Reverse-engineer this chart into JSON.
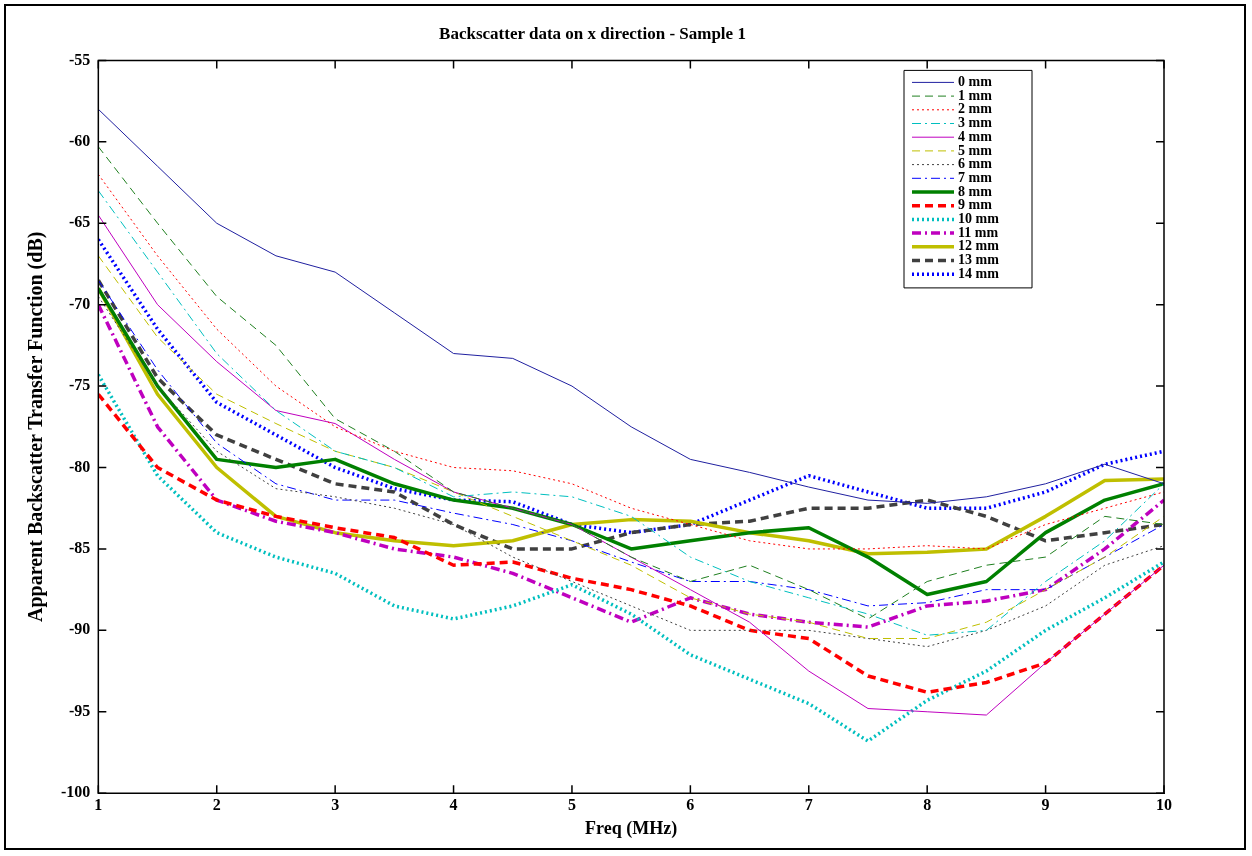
{
  "chart_data": {
    "type": "line",
    "title": "Backscatter data on x direction - Sample 1",
    "xlabel": "Freq (MHz)",
    "ylabel": "Apparent Backscatter Transfer Function (dB)",
    "x": [
      1,
      1.5,
      2,
      2.5,
      3,
      3.5,
      4,
      4.5,
      5,
      5.5,
      6,
      6.5,
      7,
      7.5,
      8,
      8.5,
      9,
      9.5,
      10
    ],
    "xlim": [
      1,
      10
    ],
    "xticks": [
      1,
      2,
      3,
      4,
      5,
      6,
      7,
      8,
      9,
      10
    ],
    "ylim": [
      -100,
      -55
    ],
    "yticks": [
      -100,
      -95,
      -90,
      -85,
      -80,
      -75,
      -70,
      -65,
      -60,
      -55
    ],
    "grid": false,
    "legend": "top right",
    "marker": "none",
    "series": [
      {
        "name": "0 mm",
        "color": "#2020a0",
        "line_style": "solid",
        "values": [
          -58,
          -61.5,
          -65,
          -67,
          -68,
          -70.5,
          -73,
          -73.3,
          -75,
          -77.5,
          -79.5,
          -80.3,
          -81.2,
          -82,
          -82.2,
          -81.8,
          -81,
          -79.8,
          -81
        ]
      },
      {
        "name": "1 mm",
        "color": "#208020",
        "line_style": "dashed",
        "values": [
          -60.3,
          -65,
          -69.5,
          -72.5,
          -77,
          -79,
          -81.5,
          -82.5,
          -83.5,
          -85.5,
          -87,
          -86,
          -87.5,
          -89.3,
          -87,
          -86,
          -85.5,
          -83,
          -83.5
        ]
      },
      {
        "name": "2 mm",
        "color": "#ff0000",
        "line_style": "dotted",
        "values": [
          -62,
          -67,
          -71.5,
          -75,
          -77.5,
          -79,
          -80,
          -80.2,
          -81,
          -82.5,
          -83.5,
          -84.5,
          -85,
          -85,
          -84.8,
          -85,
          -83.5,
          -82.5,
          -81.5
        ]
      },
      {
        "name": "3 mm",
        "color": "#00bfbf",
        "line_style": "dashdot",
        "values": [
          -63,
          -68,
          -73,
          -76.5,
          -79,
          -80,
          -81.8,
          -81.5,
          -81.8,
          -83,
          -85.5,
          -87,
          -88,
          -89,
          -90.3,
          -90,
          -87,
          -84.5,
          -81
        ]
      },
      {
        "name": "4 mm",
        "color": "#bf00bf",
        "line_style": "solid",
        "values": [
          -64.5,
          -70,
          -73.5,
          -76.5,
          -77.3,
          -79.5,
          -81.5,
          -82.5,
          -83.5,
          -85.5,
          -87.5,
          -89.5,
          -92.5,
          -94.8,
          -95,
          -95.2,
          -92,
          -89,
          -86
        ]
      },
      {
        "name": "5 mm",
        "color": "#bfbf00",
        "line_style": "dashed",
        "values": [
          -67,
          -72,
          -75.5,
          -77.3,
          -79,
          -80,
          -81.5,
          -83,
          -84.5,
          -86,
          -88,
          -89,
          -89.5,
          -90.5,
          -90.5,
          -89.5,
          -87.5,
          -85.5,
          -83
        ]
      },
      {
        "name": "6 mm",
        "color": "#404040",
        "line_style": "dotted",
        "values": [
          -69.5,
          -75,
          -79,
          -81.3,
          -81.8,
          -82.5,
          -83.5,
          -85.5,
          -87,
          -88.5,
          -90,
          -90,
          -90,
          -90.5,
          -91,
          -90,
          -88.5,
          -86,
          -84.8
        ]
      },
      {
        "name": "7 mm",
        "color": "#0000ff",
        "line_style": "dashdot",
        "values": [
          -68.5,
          -74,
          -78.5,
          -81,
          -82,
          -82,
          -82.8,
          -83.5,
          -84.5,
          -85.8,
          -87,
          -87,
          -87.5,
          -88.5,
          -88.3,
          -87.5,
          -87.5,
          -85.5,
          -83.5
        ]
      },
      {
        "name": "8 mm",
        "color": "#008000",
        "line_style": "solid",
        "values": [
          -69,
          -75,
          -79.5,
          -80,
          -79.5,
          -81,
          -82,
          -82.5,
          -83.5,
          -85,
          -84.5,
          -84,
          -83.7,
          -85.5,
          -87.8,
          -87,
          -84,
          -82,
          -81
        ]
      },
      {
        "name": "9 mm",
        "color": "#ff0000",
        "line_style": "dashed",
        "values": [
          -75.5,
          -80,
          -82,
          -83,
          -83.7,
          -84.3,
          -86,
          -85.8,
          -86.8,
          -87.5,
          -88.5,
          -90,
          -90.5,
          -92.8,
          -93.8,
          -93.2,
          -92,
          -89,
          -86
        ]
      },
      {
        "name": "10 mm",
        "color": "#00bfbf",
        "line_style": "dotted",
        "values": [
          -74.3,
          -80.5,
          -84,
          -85.5,
          -86.5,
          -88.5,
          -89.3,
          -88.5,
          -87.2,
          -89,
          -91.5,
          -93,
          -94.5,
          -96.8,
          -94.3,
          -92.5,
          -90,
          -88,
          -85.8
        ]
      },
      {
        "name": "11 mm",
        "color": "#bf00bf",
        "line_style": "dashdot",
        "values": [
          -70,
          -77.5,
          -82,
          -83.3,
          -84,
          -85,
          -85.5,
          -86.5,
          -88,
          -89.5,
          -88,
          -89,
          -89.5,
          -89.8,
          -88.5,
          -88.2,
          -87.5,
          -85,
          -82
        ]
      },
      {
        "name": "12 mm",
        "color": "#bfbf00",
        "line_style": "solid",
        "values": [
          -69,
          -75.5,
          -80,
          -83,
          -84,
          -84.5,
          -84.8,
          -84.5,
          -83.5,
          -83.2,
          -83.3,
          -84,
          -84.5,
          -85.3,
          -85.2,
          -85,
          -83,
          -80.8,
          -80.7
        ]
      },
      {
        "name": "13 mm",
        "color": "#404040",
        "line_style": "dashed",
        "values": [
          -68.5,
          -74.5,
          -78,
          -79.5,
          -81,
          -81.5,
          -83.5,
          -85,
          -85,
          -84,
          -83.5,
          -83.3,
          -82.5,
          -82.5,
          -82,
          -83,
          -84.5,
          -84,
          -83.5
        ]
      },
      {
        "name": "14 mm",
        "color": "#0000ff",
        "line_style": "dotted",
        "values": [
          -66,
          -71.5,
          -76,
          -78,
          -80,
          -81.3,
          -82,
          -82.1,
          -83.5,
          -84,
          -83.5,
          -82,
          -80.5,
          -81.5,
          -82.5,
          -82.5,
          -81.5,
          -79.8,
          -79
        ]
      }
    ]
  }
}
